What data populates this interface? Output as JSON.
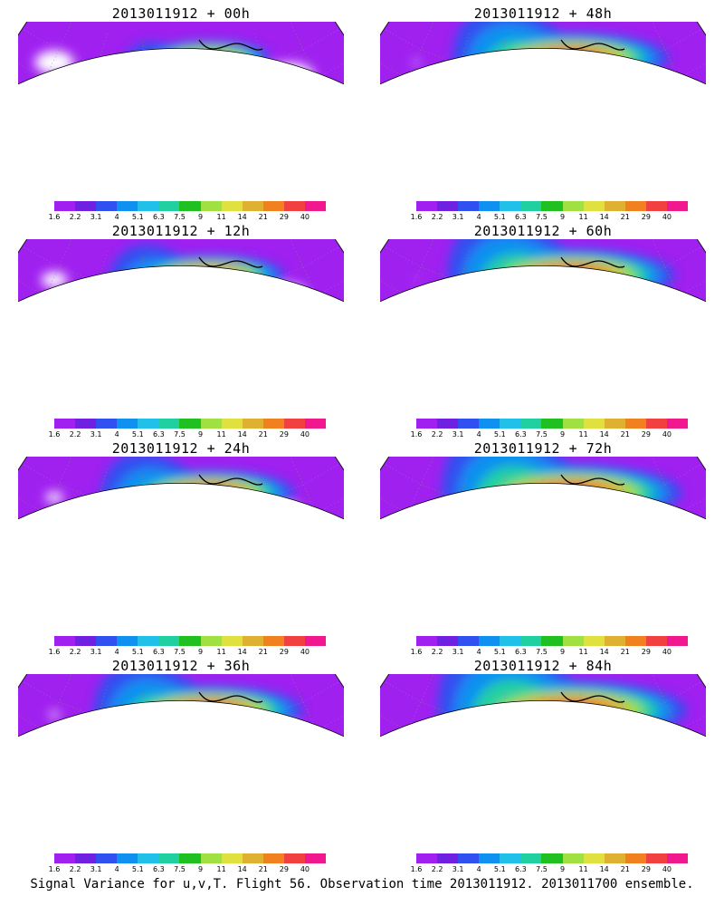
{
  "panels": [
    {
      "title": "2013011912 + 00h",
      "intensity": 0.35,
      "coverage": 0.55
    },
    {
      "title": "2013011912 + 12h",
      "intensity": 0.5,
      "coverage": 0.7
    },
    {
      "title": "2013011912 + 24h",
      "intensity": 0.6,
      "coverage": 0.8
    },
    {
      "title": "2013011912 + 36h",
      "intensity": 0.68,
      "coverage": 0.88
    },
    {
      "title": "2013011912 + 48h",
      "intensity": 0.72,
      "coverage": 0.92
    },
    {
      "title": "2013011912 + 60h",
      "intensity": 0.78,
      "coverage": 0.96
    },
    {
      "title": "2013011912 + 72h",
      "intensity": 0.85,
      "coverage": 1.0
    },
    {
      "title": "2013011912 + 84h",
      "intensity": 0.9,
      "coverage": 1.0
    }
  ],
  "colorbar": {
    "labels": [
      "1.6",
      "2.2",
      "3.1",
      "4",
      "5.1",
      "6.3",
      "7.5",
      "9",
      "11",
      "14",
      "21",
      "29",
      "40"
    ],
    "colors": [
      "#a020f0",
      "#7020e0",
      "#3050f0",
      "#1090f0",
      "#20c0e8",
      "#20d0a0",
      "#20c020",
      "#a0e040",
      "#e0e040",
      "#e0b030",
      "#f08020",
      "#f04040",
      "#f01890"
    ]
  },
  "caption": "Signal Variance for u,v,T. Flight 56. Observation time 2013011912. 2013011700 ensemble."
}
